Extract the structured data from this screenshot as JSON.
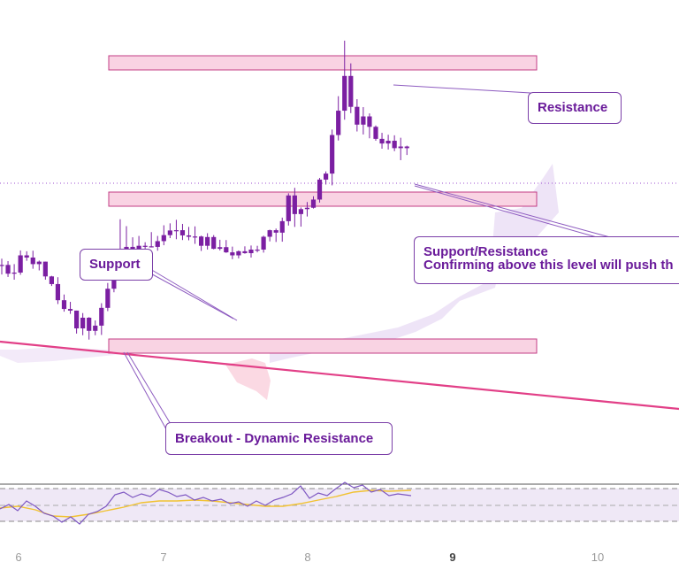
{
  "chart_data": {
    "type": "candlestick",
    "x_ticks": [
      "6",
      "7",
      "8",
      "9",
      "10"
    ],
    "bold_x_tick": "9",
    "price_range": [
      0,
      100
    ],
    "candles": [
      [
        51.9,
        54.3,
        48.5,
        52.0
      ],
      [
        52.0,
        53.4,
        47.6,
        48.8
      ],
      [
        48.8,
        52.3,
        46.6,
        49.2
      ],
      [
        49.2,
        57.3,
        48.4,
        55.5
      ],
      [
        55.5,
        57.0,
        53.5,
        54.7
      ],
      [
        54.7,
        57.2,
        50.6,
        52.3
      ],
      [
        52.3,
        53.6,
        50.0,
        53.2
      ],
      [
        53.2,
        53.2,
        46.6,
        47.8
      ],
      [
        47.8,
        48.0,
        44.3,
        45.0
      ],
      [
        45.0,
        47.5,
        37.7,
        39.1
      ],
      [
        39.1,
        41.2,
        34.9,
        35.9
      ],
      [
        35.9,
        38.5,
        34.1,
        35.3
      ],
      [
        35.3,
        35.3,
        26.9,
        28.8
      ],
      [
        28.8,
        34.4,
        26.3,
        32.7
      ],
      [
        32.7,
        32.9,
        24.7,
        27.9
      ],
      [
        27.9,
        31.7,
        26.3,
        29.8
      ],
      [
        29.8,
        38.0,
        26.4,
        36.3
      ],
      [
        36.3,
        45.4,
        35.1,
        43.3
      ],
      [
        43.3,
        50.8,
        42.0,
        50.2
      ],
      [
        50.2,
        68.7,
        47.3,
        56.1
      ],
      [
        56.1,
        66.2,
        50.1,
        58.6
      ],
      [
        58.6,
        62.1,
        53.6,
        56.1
      ],
      [
        56.1,
        62.6,
        54.3,
        59.0
      ],
      [
        59.0,
        60.3,
        56.9,
        58.8
      ],
      [
        58.8,
        64.0,
        58.4,
        58.6
      ],
      [
        58.6,
        62.6,
        57.2,
        60.7
      ],
      [
        60.7,
        66.5,
        59.2,
        62.9
      ],
      [
        62.9,
        67.2,
        61.8,
        64.6
      ],
      [
        64.6,
        68.5,
        61.4,
        64.7
      ],
      [
        64.7,
        67.0,
        61.1,
        62.8
      ],
      [
        62.8,
        65.9,
        61.0,
        62.3
      ],
      [
        62.3,
        66.1,
        59.7,
        62.4
      ],
      [
        62.4,
        62.7,
        57.1,
        59.0
      ],
      [
        59.0,
        63.6,
        57.6,
        62.2
      ],
      [
        62.2,
        62.9,
        57.7,
        57.9
      ],
      [
        57.9,
        61.2,
        57.3,
        58.5
      ],
      [
        58.5,
        61.1,
        56.4,
        56.6
      ],
      [
        56.6,
        58.7,
        54.1,
        55.5
      ],
      [
        55.5,
        57.3,
        54.4,
        57.0
      ],
      [
        57.0,
        58.8,
        56.1,
        56.3
      ],
      [
        56.3,
        59.1,
        54.7,
        57.6
      ],
      [
        57.6,
        59.0,
        56.6,
        57.6
      ],
      [
        57.6,
        62.7,
        56.5,
        62.3
      ],
      [
        62.3,
        64.9,
        60.6,
        64.7
      ],
      [
        64.7,
        65.3,
        60.4,
        63.8
      ],
      [
        63.8,
        69.3,
        60.5,
        68.0
      ],
      [
        68.0,
        78.2,
        66.4,
        77.4
      ],
      [
        77.4,
        80.2,
        65.9,
        70.6
      ],
      [
        70.6,
        73.0,
        66.0,
        72.4
      ],
      [
        72.4,
        75.0,
        69.7,
        72.9
      ],
      [
        72.9,
        77.1,
        72.6,
        75.9
      ],
      [
        75.9,
        83.8,
        74.8,
        83.2
      ],
      [
        83.2,
        86.2,
        81.4,
        85.4
      ],
      [
        85.4,
        101.5,
        81.1,
        99.5
      ],
      [
        99.5,
        113.7,
        97.5,
        108.4
      ],
      [
        108.4,
        134.0,
        105.1,
        121.1
      ],
      [
        121.1,
        125.7,
        107.5,
        109.8
      ],
      [
        109.8,
        112.6,
        100.8,
        103.3
      ],
      [
        103.3,
        109.7,
        99.7,
        106.3
      ],
      [
        106.3,
        107.4,
        98.3,
        102.5
      ],
      [
        102.5,
        103.0,
        97.4,
        98.1
      ],
      [
        98.1,
        100.3,
        94.5,
        96.4
      ],
      [
        96.4,
        99.6,
        94.2,
        97.4
      ],
      [
        97.4,
        99.4,
        93.6,
        94.7
      ],
      [
        94.7,
        98.5,
        90.3,
        95.3
      ],
      [
        95.3,
        95.6,
        92.2,
        94.7
      ]
    ]
  },
  "levels": {
    "top": [
      100,
      105.7
    ],
    "middle": [
      85.8,
      90.6
    ],
    "bottom": [
      51.7,
      56.5
    ]
  },
  "colors": {
    "candle": "#7b1fa2",
    "zone_fill": "#f9d3e3",
    "zone_border": "#c33d86",
    "trendline": "#e23f87",
    "callout_border": "#7b3fa8",
    "callout_text": "#6a1b9a"
  },
  "callouts": {
    "resistance": "Resistance",
    "support": "Support",
    "support_resistance_title": "Support/Resistance",
    "support_resistance_body": "Confirming above this level will push th",
    "breakout": "Breakout - Dynamic Resistance"
  }
}
